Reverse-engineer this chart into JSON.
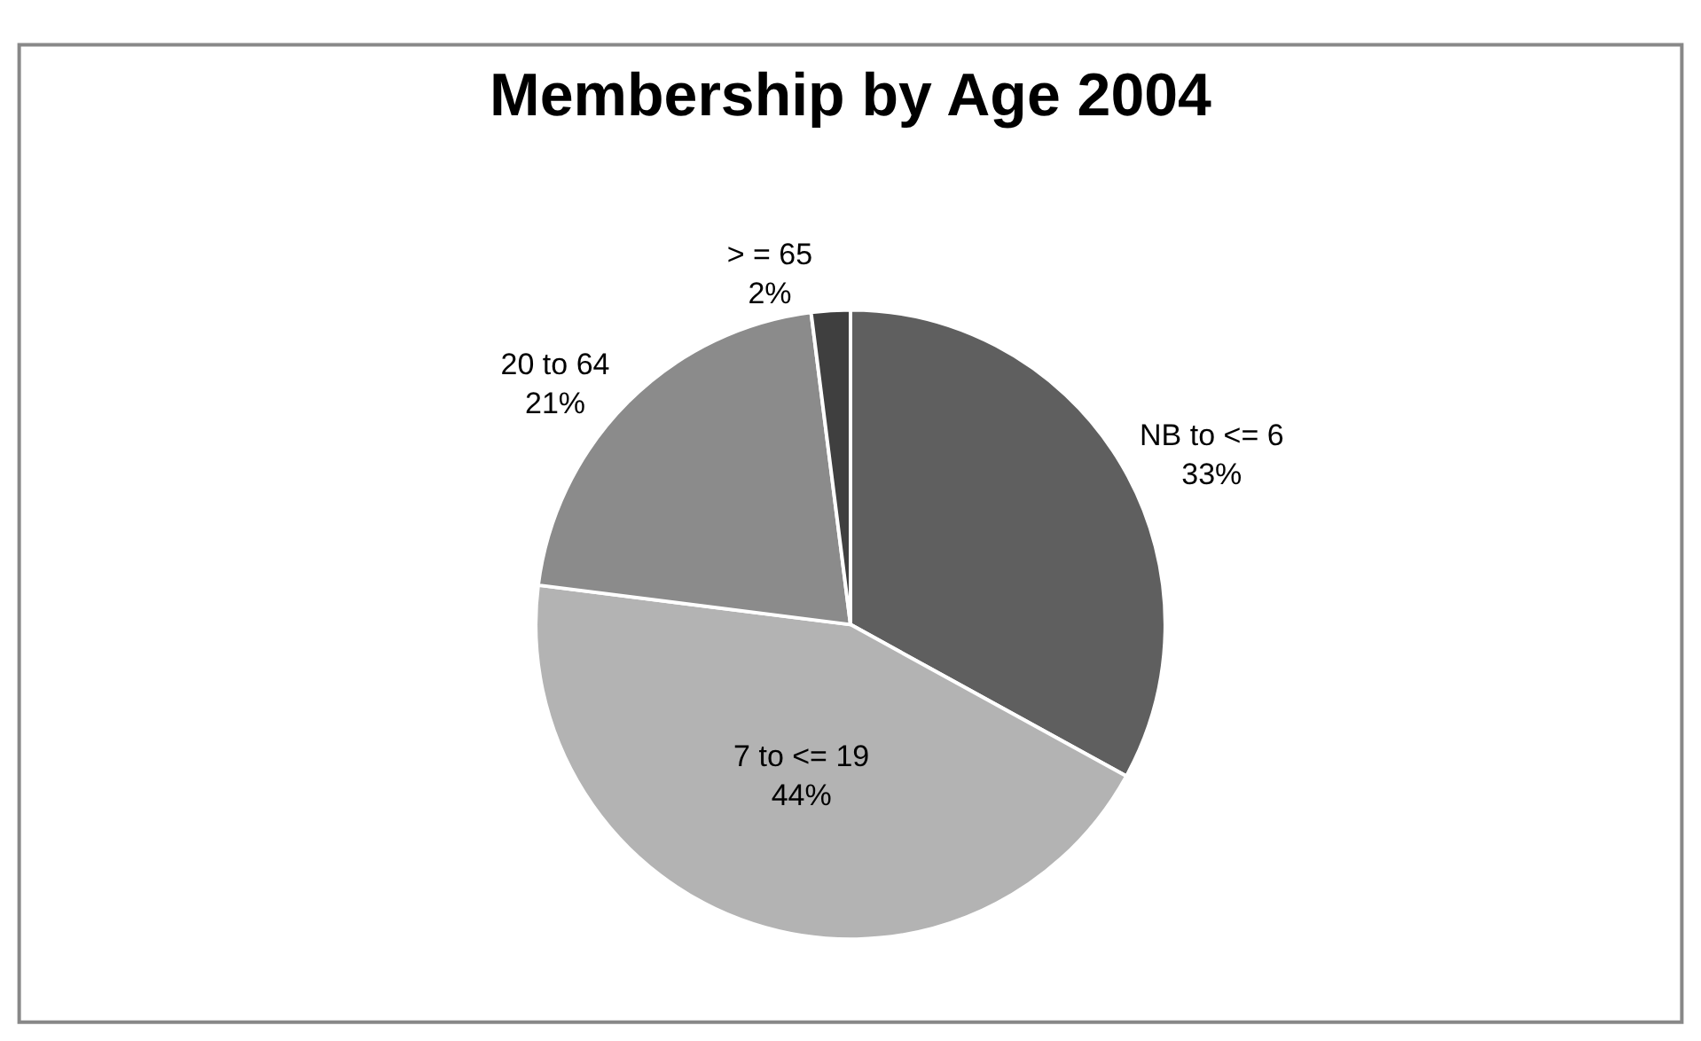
{
  "chart_data": {
    "type": "pie",
    "title": "Membership by Age 2004",
    "categories": [
      "NB to <= 6",
      "7 to <= 19",
      "20 to 64",
      "> = 65"
    ],
    "values": [
      33,
      44,
      21,
      2
    ],
    "colors": [
      "#5f5f5f",
      "#b3b3b3",
      "#8b8b8b",
      "#3f3f3f"
    ],
    "value_labels": [
      "33%",
      "44%",
      "21%",
      "2%"
    ]
  }
}
